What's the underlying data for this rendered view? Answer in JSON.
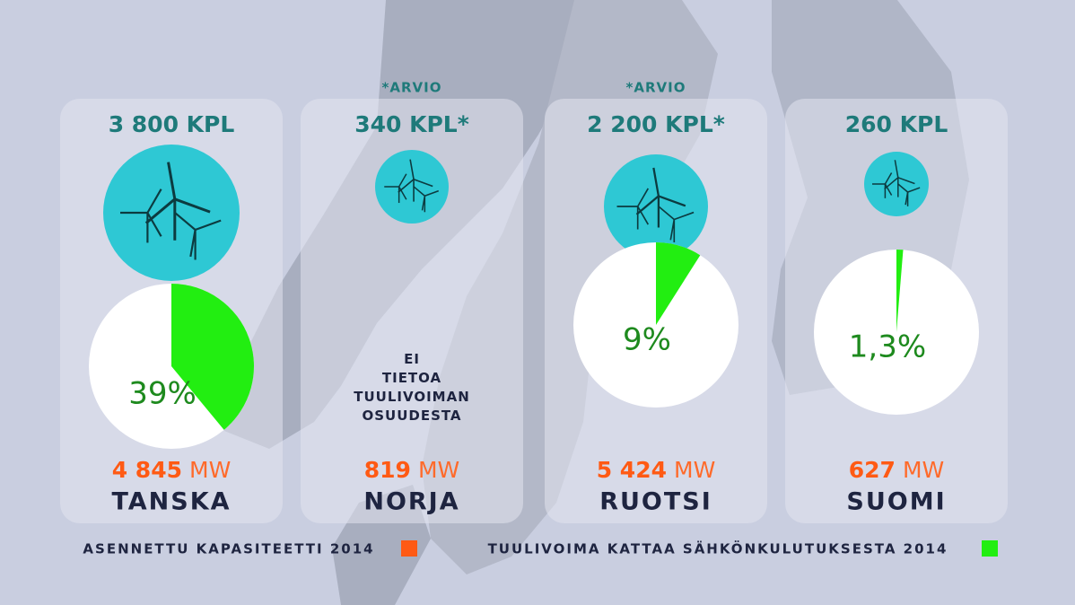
{
  "countries": [
    {
      "turbines": "3 800 KPL",
      "note": null,
      "share": 39,
      "share_label": "39%",
      "capacity": "4 845",
      "name": "TANSKA"
    },
    {
      "turbines": "340 KPL*",
      "note": "*ARVIO",
      "share": null,
      "share_label": null,
      "no_data": "EI TIETOA TUULIVOIMAN OSUUDESTA",
      "capacity": "819",
      "name": "NORJA"
    },
    {
      "turbines": "2 200 KPL*",
      "note": "*ARVIO",
      "share": 9,
      "share_label": "9%",
      "capacity": "5 424",
      "name": "RUOTSI"
    },
    {
      "turbines": "260 KPL",
      "note": null,
      "share": 1.3,
      "share_label": "1,3%",
      "capacity": "627",
      "name": "SUOMI"
    }
  ],
  "capacity_unit": "MW",
  "legend": {
    "capacity": "ASENNETTU KAPASITEETTI 2014",
    "capacity_color": "#ff5a14",
    "share": "TUULIVOIMA KATTAA SÄHKÖNKULUTUKSESTA 2014",
    "share_color": "#22ee11"
  }
}
